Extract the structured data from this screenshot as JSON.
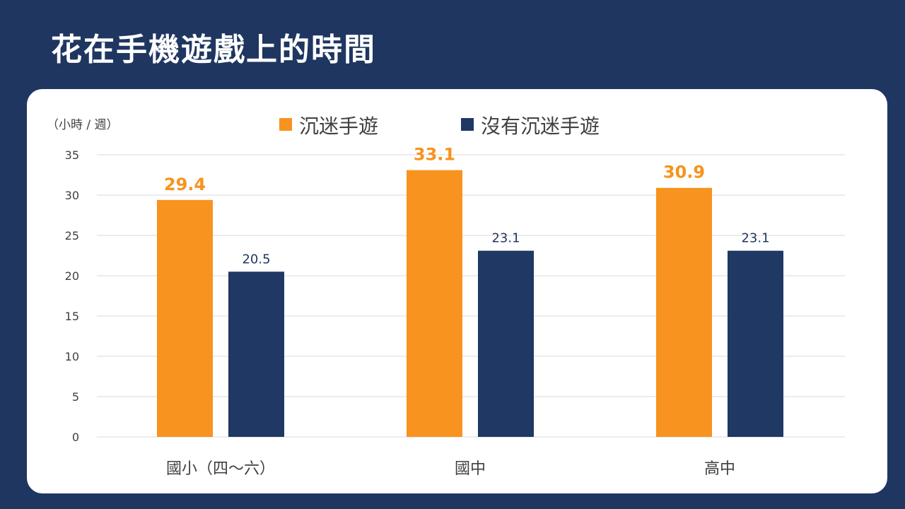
{
  "title": "花在手機遊戲上的時間",
  "chart_data": {
    "type": "bar",
    "title": "花在手機遊戲上的時間",
    "ylabel": "（小時 / 週）",
    "xlabel": "",
    "categories": [
      "國小（四～六）",
      "國中",
      "高中"
    ],
    "series": [
      {
        "name": "沉迷手遊",
        "color": "#f7931e",
        "values": [
          29.4,
          33.1,
          30.9
        ]
      },
      {
        "name": "沒有沉迷手遊",
        "color": "#1f3864",
        "values": [
          20.5,
          23.1,
          23.1
        ]
      }
    ],
    "ylim": [
      0,
      35
    ],
    "yticks": [
      0,
      5,
      10,
      15,
      20,
      25,
      30,
      35
    ],
    "grid": true,
    "legend": "top-center"
  }
}
